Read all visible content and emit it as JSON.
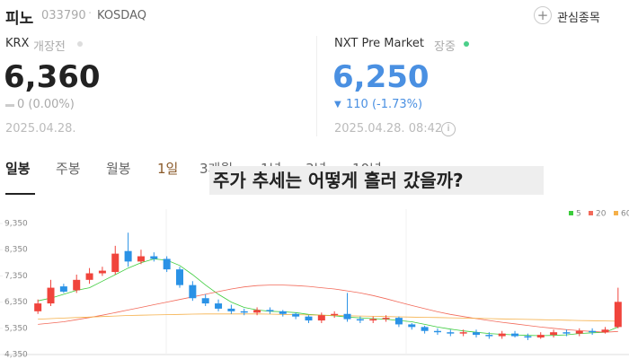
{
  "header": {
    "name": "피노",
    "code": "033790",
    "market": "KOSDAQ",
    "watch_button": "관심종목"
  },
  "krx": {
    "label": "KRX",
    "status": "개장전",
    "price": "6,360",
    "change": "0 (0.00%)",
    "date": "2025.04.28."
  },
  "nxt": {
    "label": "NXT Pre Market",
    "status": "장중",
    "price": "6,250",
    "change": "110 (-1.73%)",
    "date": "2025.04.28. 08:42"
  },
  "tabs": [
    "일봉",
    "주봉",
    "월봉",
    "1일",
    "3개월",
    "1년",
    "3년",
    "10년"
  ],
  "overlay_text": "주가 추세는 어떻게 흘러 갔을까?",
  "chart_data": {
    "type": "candlestick",
    "up_color": "#f0443c",
    "down_color": "#2a92e6",
    "open": [
      6000,
      6300,
      6950,
      6800,
      7200,
      7450,
      7500,
      8300,
      7900,
      8100,
      8000,
      7600,
      7000,
      6500,
      6300,
      6100,
      6000,
      5950,
      6050,
      6000,
      5900,
      5800,
      5650,
      5850,
      5900,
      5700,
      5650,
      5700,
      5750,
      5500,
      5400,
      5250,
      5200,
      5150,
      5200,
      5100,
      5050,
      5150,
      5050,
      5000,
      5100,
      5200,
      5150,
      5250,
      5200,
      5400
    ],
    "high": [
      6450,
      7200,
      7050,
      7400,
      7650,
      7700,
      8500,
      9000,
      8350,
      8250,
      8100,
      7700,
      7150,
      6650,
      6450,
      6250,
      6100,
      6150,
      6150,
      6050,
      5950,
      5850,
      5950,
      6000,
      6700,
      5800,
      5800,
      5850,
      5800,
      5550,
      5450,
      5350,
      5300,
      5300,
      5300,
      5200,
      5250,
      5250,
      5150,
      5200,
      5300,
      5300,
      5350,
      5350,
      5400,
      6900
    ],
    "low": [
      5900,
      6200,
      6700,
      6700,
      7050,
      7350,
      7400,
      7700,
      7800,
      7900,
      7500,
      6900,
      6400,
      6200,
      6000,
      5900,
      5850,
      5850,
      5900,
      5800,
      5700,
      5550,
      5550,
      5750,
      5600,
      5550,
      5550,
      5600,
      5400,
      5300,
      5150,
      5100,
      5050,
      5050,
      5000,
      4950,
      4950,
      5000,
      4900,
      4950,
      5000,
      5050,
      5050,
      5100,
      5150,
      5350
    ],
    "close": [
      6300,
      6900,
      6750,
      7200,
      7450,
      7550,
      8200,
      7900,
      8100,
      8000,
      7600,
      7000,
      6500,
      6300,
      6100,
      6000,
      5950,
      6050,
      6000,
      5900,
      5800,
      5650,
      5850,
      5900,
      5700,
      5650,
      5700,
      5750,
      5500,
      5400,
      5250,
      5200,
      5150,
      5200,
      5100,
      5050,
      5150,
      5050,
      5000,
      5100,
      5200,
      5150,
      5250,
      5200,
      5300,
      6360
    ],
    "series": [
      {
        "name": "5",
        "color": "#3ccc3c",
        "values": [
          6400,
          6500,
          6650,
          6800,
          6900,
          7150,
          7400,
          7650,
          7850,
          8000,
          7950,
          7750,
          7400,
          7000,
          6650,
          6350,
          6150,
          6050,
          6000,
          5980,
          5950,
          5880,
          5850,
          5830,
          5780,
          5750,
          5720,
          5700,
          5650,
          5600,
          5500,
          5400,
          5320,
          5250,
          5200,
          5150,
          5120,
          5100,
          5080,
          5070,
          5080,
          5100,
          5150,
          5180,
          5200,
          5400
        ]
      },
      {
        "name": "20",
        "color": "#f26a5a",
        "values": [
          5500,
          5550,
          5600,
          5680,
          5760,
          5850,
          5950,
          6050,
          6150,
          6250,
          6350,
          6450,
          6550,
          6650,
          6750,
          6850,
          6930,
          6980,
          7000,
          7000,
          6980,
          6950,
          6900,
          6850,
          6780,
          6700,
          6600,
          6480,
          6350,
          6220,
          6100,
          5980,
          5880,
          5800,
          5720,
          5650,
          5580,
          5520,
          5460,
          5400,
          5350,
          5300,
          5260,
          5230,
          5200,
          5230
        ]
      },
      {
        "name": "60",
        "color": "#f5b04a",
        "values": [
          5700,
          5720,
          5740,
          5760,
          5780,
          5800,
          5820,
          5840,
          5850,
          5860,
          5870,
          5880,
          5890,
          5900,
          5900,
          5900,
          5900,
          5900,
          5890,
          5880,
          5870,
          5860,
          5850,
          5840,
          5830,
          5820,
          5810,
          5800,
          5790,
          5780,
          5770,
          5760,
          5750,
          5740,
          5730,
          5720,
          5710,
          5700,
          5690,
          5680,
          5670,
          5660,
          5650,
          5640,
          5630,
          5620
        ]
      }
    ],
    "ylim": [
      4350,
      9900
    ],
    "yticks": [
      {
        "value": 4350,
        "label": "4,350"
      },
      {
        "value": 5350,
        "label": "5,350"
      },
      {
        "value": 6350,
        "label": "6,350"
      },
      {
        "value": 7350,
        "label": "7,350"
      },
      {
        "value": 8350,
        "label": "8,350"
      },
      {
        "value": 9350,
        "label": "9,350"
      }
    ],
    "legend": "top-right"
  }
}
